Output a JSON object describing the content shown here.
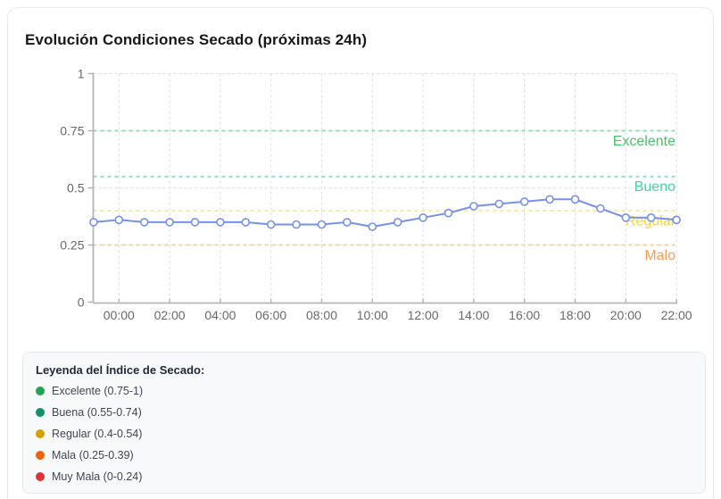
{
  "card": {
    "title": "Evolución Condiciones Secado (próximas 24h)"
  },
  "chart_data": {
    "type": "line",
    "title": "Evolución Condiciones Secado (próximas 24h)",
    "x": [
      "23:00",
      "00:00",
      "01:00",
      "02:00",
      "03:00",
      "04:00",
      "05:00",
      "06:00",
      "07:00",
      "08:00",
      "09:00",
      "10:00",
      "11:00",
      "12:00",
      "13:00",
      "14:00",
      "15:00",
      "16:00",
      "17:00",
      "18:00",
      "19:00",
      "20:00",
      "21:00",
      "22:00"
    ],
    "values": [
      0.35,
      0.36,
      0.35,
      0.35,
      0.35,
      0.35,
      0.35,
      0.34,
      0.34,
      0.34,
      0.35,
      0.33,
      0.35,
      0.37,
      0.39,
      0.42,
      0.43,
      0.44,
      0.45,
      0.45,
      0.41,
      0.37,
      0.37,
      0.36
    ],
    "x_tick_labels": [
      "00:00",
      "02:00",
      "04:00",
      "06:00",
      "08:00",
      "10:00",
      "12:00",
      "14:00",
      "16:00",
      "18:00",
      "20:00",
      "22:00"
    ],
    "y_ticks": [
      0,
      0.25,
      0.5,
      0.75,
      1
    ],
    "y_tick_labels": [
      "0",
      "0.25",
      "0.5",
      "0.75",
      "1"
    ],
    "ylim": [
      0,
      1
    ],
    "grid": true,
    "legend_position": "none",
    "line_color": "#7691ed",
    "marker_fill": "#ffffff",
    "tick_color": "#65686e",
    "grid_color": "#e1e2e5",
    "axis_color": "#b4b5b8",
    "thresholds": [
      {
        "label": "Excelente",
        "value": 0.75,
        "line_color": "#93e0af",
        "label_color": "#4ac06d"
      },
      {
        "label": "Bueno",
        "value": 0.55,
        "line_color": "#8ce2c8",
        "label_color": "#3cd6a0"
      },
      {
        "label": "Regular",
        "value": 0.4,
        "line_color": "#f9e8a0",
        "label_color": "#f6d42e"
      },
      {
        "label": "Malo",
        "value": 0.25,
        "line_color": "#fbd0a0",
        "label_color": "#f89c55"
      }
    ]
  },
  "legend": {
    "title": "Leyenda del Índice de Secado:",
    "items": [
      {
        "label": "Excelente (0.75-1)",
        "color": "#23a455"
      },
      {
        "label": "Buena (0.55-0.74)",
        "color": "#10906b"
      },
      {
        "label": "Regular (0.4-0.54)",
        "color": "#d4a106"
      },
      {
        "label": "Mala (0.25-0.39)",
        "color": "#f2610c"
      },
      {
        "label": "Muy Mala (0-0.24)",
        "color": "#e13336"
      }
    ]
  }
}
